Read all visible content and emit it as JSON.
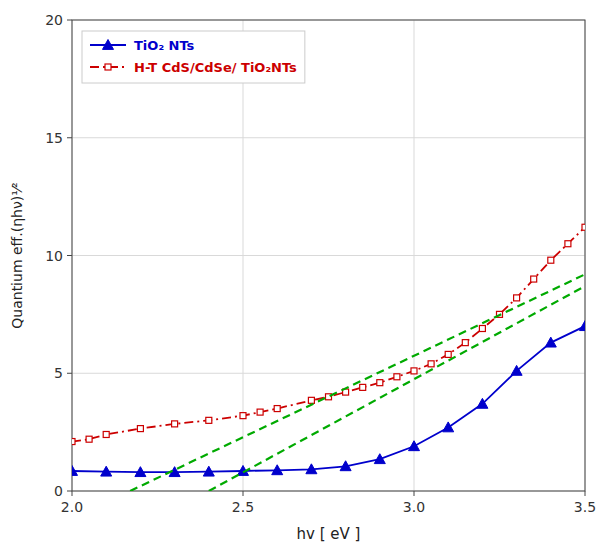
{
  "chart_data": {
    "type": "line",
    "x_label": "hv [ eV ]",
    "y_label": "Quantium eff.(ηhν)¹⁄²",
    "xlim": [
      2.0,
      3.5
    ],
    "ylim": [
      0,
      20
    ],
    "xticks": [
      {
        "value": 2.0,
        "label": "2.0"
      },
      {
        "value": 2.5,
        "label": "2.5"
      },
      {
        "value": 3.0,
        "label": "3.0"
      },
      {
        "value": 3.5,
        "label": "3.5"
      }
    ],
    "yticks": [
      0,
      5,
      10,
      15,
      20
    ],
    "grid": true,
    "legend": "upper left",
    "series": [
      {
        "name": "TiO₂ NTs",
        "color": "#0000cc",
        "marker": "triangle",
        "line_style": "solid",
        "x": [
          2.0,
          2.1,
          2.2,
          2.3,
          2.4,
          2.5,
          2.6,
          2.7,
          2.8,
          2.9,
          3.0,
          3.1,
          3.2,
          3.3,
          3.4,
          3.5
        ],
        "values": [
          0.85,
          0.82,
          0.8,
          0.8,
          0.82,
          0.85,
          0.88,
          0.92,
          1.05,
          1.35,
          1.9,
          2.7,
          3.7,
          5.1,
          6.3,
          7.0
        ]
      },
      {
        "name": "H-T CdS/CdSe/ TiO₂NTs",
        "color": "#cc0000",
        "marker": "square",
        "line_style": "dashdot",
        "x": [
          2.0,
          2.05,
          2.1,
          2.2,
          2.3,
          2.4,
          2.5,
          2.55,
          2.6,
          2.7,
          2.75,
          2.8,
          2.85,
          2.9,
          2.95,
          3.0,
          3.05,
          3.1,
          3.15,
          3.2,
          3.25,
          3.3,
          3.35,
          3.4,
          3.45,
          3.5
        ],
        "values": [
          2.1,
          2.2,
          2.4,
          2.65,
          2.85,
          3.0,
          3.2,
          3.35,
          3.5,
          3.85,
          4.0,
          4.2,
          4.4,
          4.6,
          4.85,
          5.1,
          5.4,
          5.8,
          6.3,
          6.9,
          7.5,
          8.2,
          9.0,
          9.8,
          10.5,
          11.2
        ]
      },
      {
        "color": "#00aa00",
        "line_style": "dashed",
        "x": [
          2.17,
          3.5
        ],
        "values": [
          0.0,
          9.2
        ]
      },
      {
        "color": "#00aa00",
        "line_style": "dashed",
        "x": [
          2.4,
          3.5
        ],
        "values": [
          0.0,
          8.7
        ]
      }
    ]
  }
}
